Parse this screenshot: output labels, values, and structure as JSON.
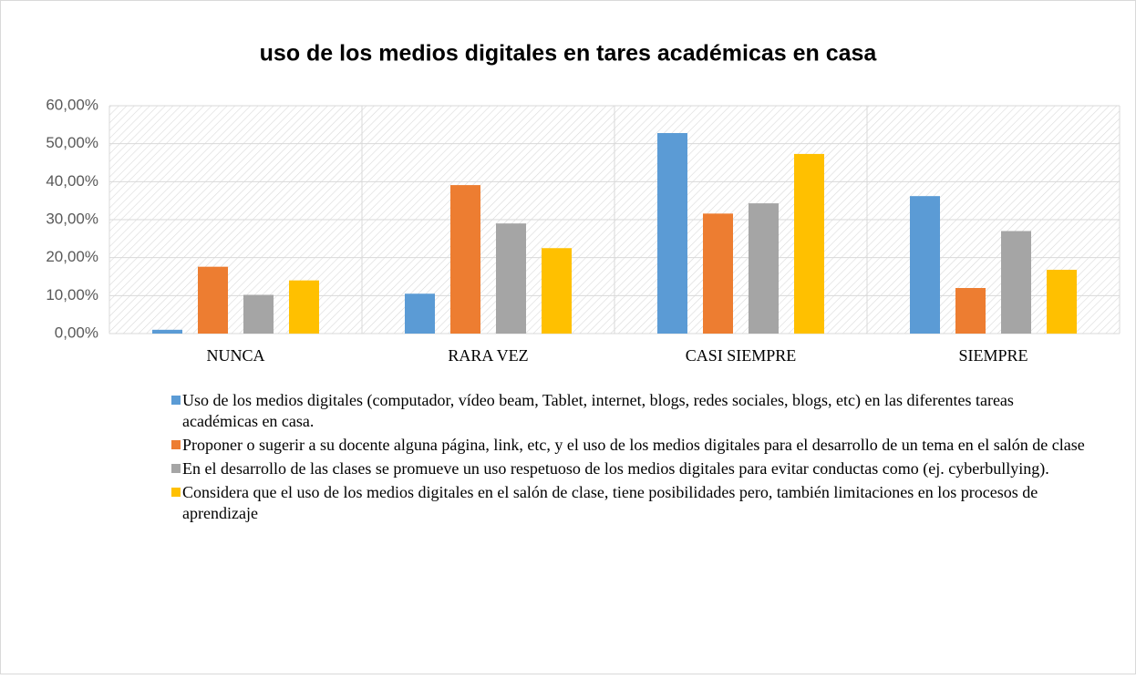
{
  "chart_data": {
    "type": "bar",
    "title": "uso de los medios digitales en tares académicas en casa",
    "categories": [
      "NUNCA",
      "RARA VEZ",
      "CASI SIEMPRE",
      "SIEMPRE"
    ],
    "series": [
      {
        "name": "Uso de los medios digitales (computador, vídeo beam, Tablet, internet, blogs, redes sociales, blogs, etc) en las diferentes tareas académicas en casa.",
        "color": "#5b9bd5",
        "values": [
          1,
          10.5,
          52.8,
          36.2
        ]
      },
      {
        "name": "Proponer o sugerir a su docente alguna página, link, etc, y el uso de los medios digitales para el desarrollo de un tema en el salón de clase",
        "color": "#ed7d31",
        "values": [
          17.6,
          39.1,
          31.6,
          12
        ]
      },
      {
        "name": "En el desarrollo de las clases se promueve un uso respetuoso de los medios digitales para evitar conductas como (ej. cyberbullying).",
        "color": "#a5a5a5",
        "values": [
          10.2,
          29,
          34.3,
          27
        ]
      },
      {
        "name": "Considera que el uso de los medios digitales en el salón de clase, tiene posibilidades pero, también limitaciones en los procesos de aprendizaje",
        "color": "#ffc000",
        "values": [
          14,
          22.5,
          47.3,
          16.8
        ]
      }
    ],
    "ylim": [
      0,
      60
    ],
    "yticks": [
      {
        "value": 0,
        "label": "0,00%"
      },
      {
        "value": 10,
        "label": "10,00%"
      },
      {
        "value": 20,
        "label": "20,00%"
      },
      {
        "value": 30,
        "label": "30,00%"
      },
      {
        "value": 40,
        "label": "40,00%"
      },
      {
        "value": 50,
        "label": "50,00%"
      },
      {
        "value": 60,
        "label": "60,00%"
      }
    ],
    "grid": true,
    "legend": "bottom"
  }
}
